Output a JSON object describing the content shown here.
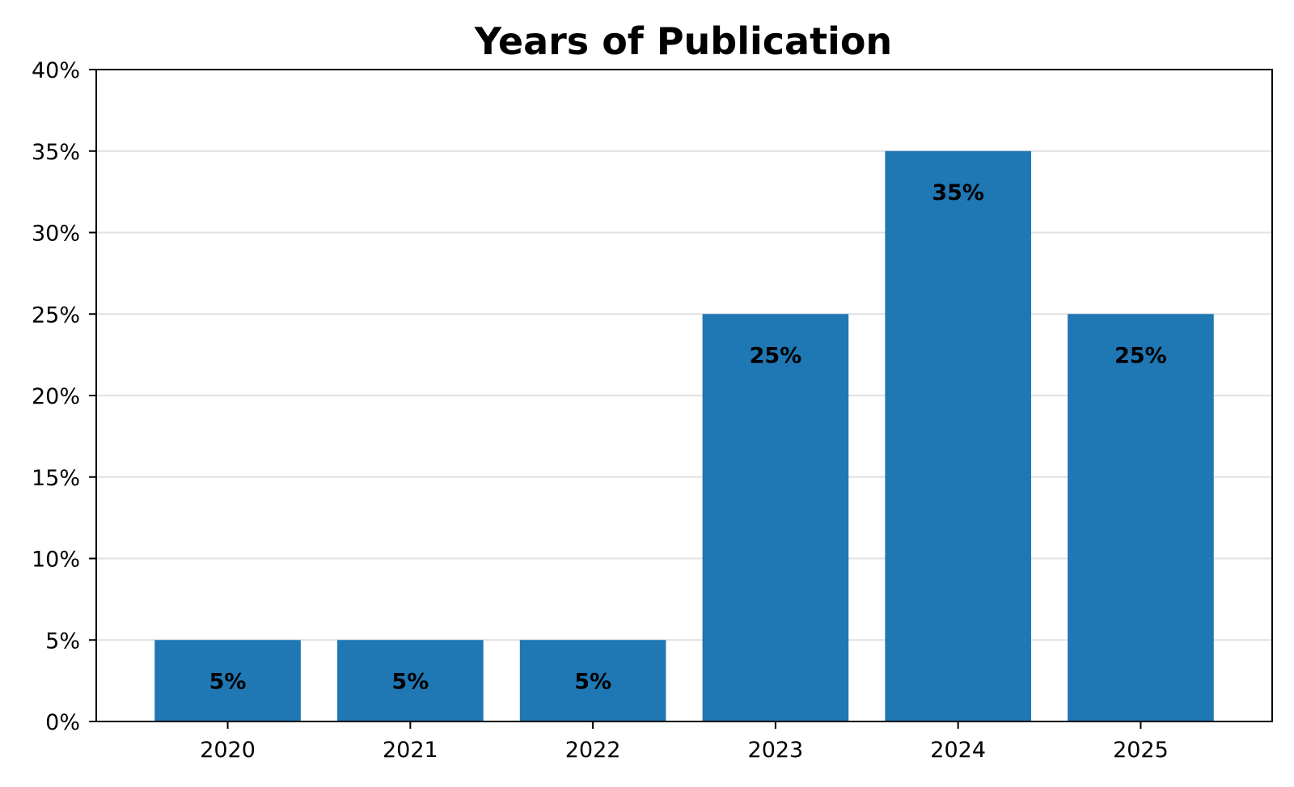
{
  "colors": {
    "bar": "#1f77b4",
    "grid": "#e0e0e0",
    "axis": "#000000",
    "background": "#ffffff"
  },
  "chart_data": {
    "type": "bar",
    "title": "Years of Publication",
    "xlabel": "",
    "ylabel": "",
    "categories": [
      "2020",
      "2021",
      "2022",
      "2023",
      "2024",
      "2025"
    ],
    "values": [
      5,
      5,
      5,
      25,
      35,
      25
    ],
    "data_labels": [
      "5%",
      "5%",
      "5%",
      "25%",
      "35%",
      "25%"
    ],
    "ylim": [
      0,
      40
    ],
    "y_ticks": [
      0,
      5,
      10,
      15,
      20,
      25,
      30,
      35,
      40
    ],
    "y_tick_labels": [
      "0%",
      "5%",
      "10%",
      "15%",
      "20%",
      "25%",
      "30%",
      "35%",
      "40%"
    ],
    "grid": "y-major",
    "legend": "none"
  }
}
